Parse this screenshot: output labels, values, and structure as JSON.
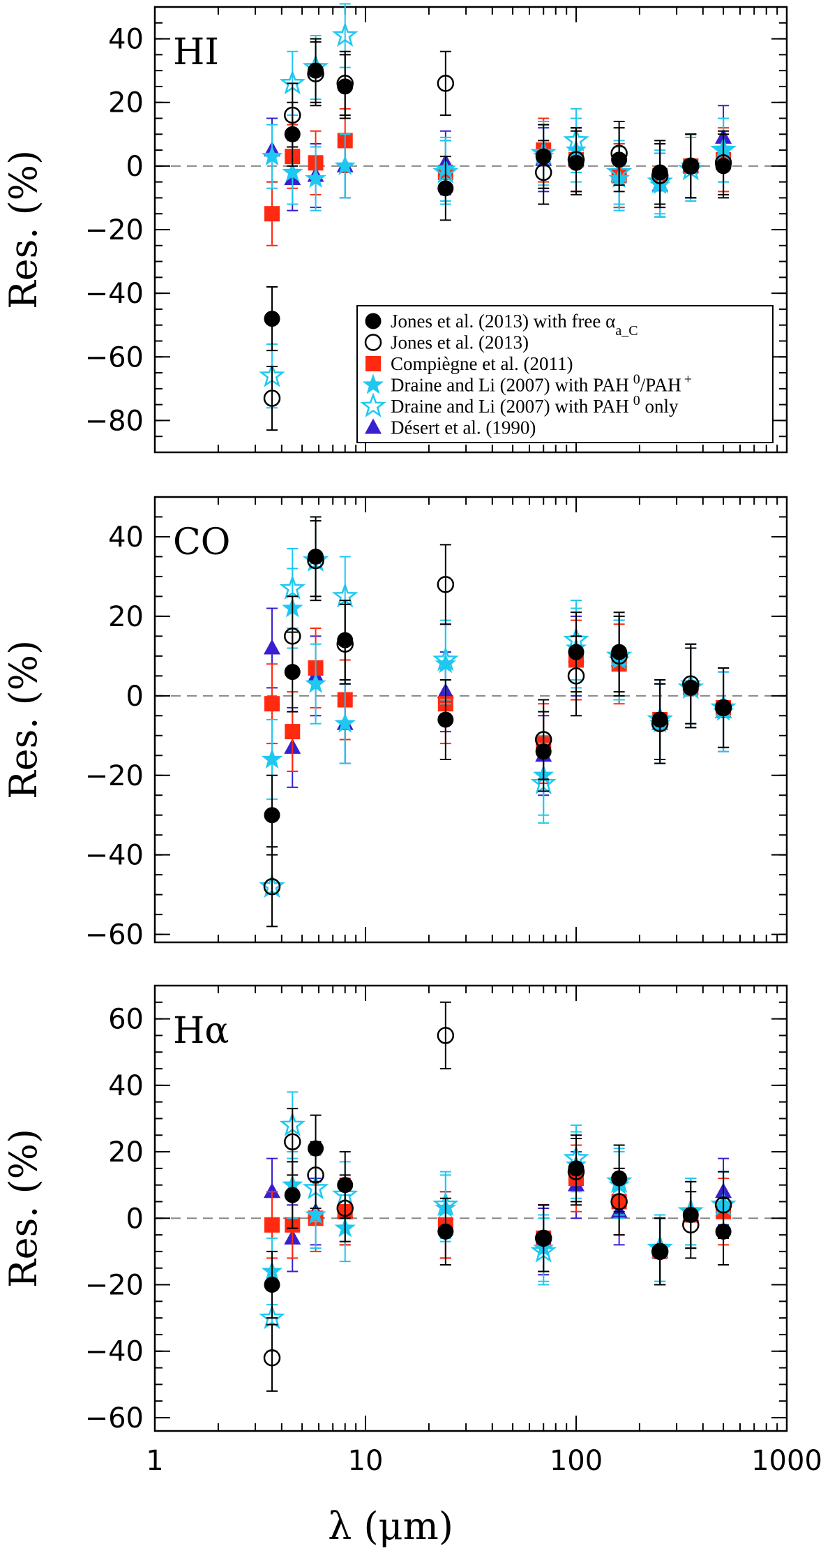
{
  "chart_data": {
    "type": "scatter",
    "xlabel": "λ (μm)",
    "xscale": "log",
    "xlim": [
      1,
      1000
    ],
    "x_tick_labels": [
      "1",
      "10",
      "100",
      "1000"
    ],
    "bands_um": [
      3.6,
      4.5,
      5.8,
      8.0,
      24,
      70,
      100,
      160,
      250,
      350,
      500
    ],
    "colors": {
      "jones_free": "#000000",
      "jones": "#000000",
      "compiegne": "#ff2a10",
      "draine_mix": "#1ec8f0",
      "draine_neutral": "#1ec8f0",
      "desert": "#3a1fd0"
    },
    "legend": [
      {
        "key": "jones_free",
        "label": "Jones et al. (2013) with free α",
        "label_sub": "a_C",
        "marker": "filled-circle"
      },
      {
        "key": "jones",
        "label": "Jones et al. (2013)",
        "marker": "open-circle"
      },
      {
        "key": "compiegne",
        "label": "Compiègne et al. (2011)",
        "marker": "filled-square"
      },
      {
        "key": "draine_mix",
        "label": "Draine and Li (2007) with PAH",
        "label_sup1": "0",
        "label_mid": "/PAH",
        "label_sup2": "+",
        "marker": "filled-star"
      },
      {
        "key": "draine_neutral",
        "label": "Draine and Li (2007) with PAH",
        "label_sup1": "0",
        "label_tail": " only",
        "marker": "open-star"
      },
      {
        "key": "desert",
        "label": "Désert et al. (1990)",
        "marker": "filled-triangle"
      }
    ],
    "panels": [
      {
        "name": "HI",
        "label": "HI",
        "ylabel": "Res. (%)",
        "ylim": [
          -90,
          50
        ],
        "yticks": [
          40,
          20,
          0,
          -20,
          -40,
          -60,
          -80
        ],
        "ytick_labels": [
          "40",
          "20",
          "0",
          "−20",
          "−40",
          "−60",
          "−80"
        ],
        "show_legend": true,
        "series": [
          {
            "key": "desert",
            "values": [
              5,
              -4,
              -3,
              0,
              1,
              2,
              2,
              -3,
              -6,
              0,
              9
            ],
            "err": 10
          },
          {
            "key": "compiegne",
            "values": [
              -15,
              3,
              1,
              8,
              -2,
              5,
              2,
              -3,
              -3,
              0,
              2
            ],
            "err": 10
          },
          {
            "key": "draine_mix",
            "values": [
              3,
              -2,
              -4,
              0,
              -1,
              3,
              5,
              -4,
              -6,
              0,
              5
            ],
            "err": 10
          },
          {
            "key": "draine_neutral",
            "values": [
              -66,
              26,
              31,
              41,
              -2,
              4,
              8,
              -2,
              -5,
              -1,
              5
            ],
            "err": 10
          },
          {
            "key": "jones_free",
            "values": [
              -48,
              10,
              30,
              25,
              -7,
              3,
              1,
              2,
              -2,
              0,
              0
            ],
            "err": 10
          },
          {
            "key": "jones",
            "values": [
              -73,
              16,
              29,
              26,
              26,
              -2,
              2,
              4,
              -3,
              0,
              1
            ],
            "err": 10
          }
        ]
      },
      {
        "name": "CO",
        "label": "CO",
        "ylabel": "Res. (%)",
        "ylim": [
          -62,
          50
        ],
        "yticks": [
          40,
          20,
          0,
          -20,
          -40,
          -60
        ],
        "ytick_labels": [
          "40",
          "20",
          "0",
          "−20",
          "−40",
          "−60"
        ],
        "show_legend": false,
        "series": [
          {
            "key": "desert",
            "values": [
              12,
              -13,
              5,
              -7,
              1,
              -15,
              10,
              9,
              -7,
              3,
              -4
            ],
            "err": 10
          },
          {
            "key": "compiegne",
            "values": [
              -2,
              -9,
              7,
              -1,
              -2,
              -12,
              9,
              8,
              -6,
              2,
              -3
            ],
            "err": 10
          },
          {
            "key": "draine_mix",
            "values": [
              -16,
              22,
              3,
              -7,
              8,
              -20,
              12,
              9,
              -7,
              3,
              -4
            ],
            "err": 10
          },
          {
            "key": "draine_neutral",
            "values": [
              -48,
              27,
              34,
              25,
              9,
              -22,
              14,
              10,
              -6,
              2,
              -3
            ],
            "err": 10
          },
          {
            "key": "jones_free",
            "values": [
              -30,
              6,
              35,
              14,
              -6,
              -14,
              11,
              11,
              -6,
              2,
              -3
            ],
            "err": 10
          },
          {
            "key": "jones",
            "values": [
              -48,
              15,
              34,
              13,
              28,
              -11,
              5,
              10,
              -7,
              3,
              -3
            ],
            "err": 10
          }
        ]
      },
      {
        "name": "Halpha",
        "label": "Hα",
        "ylabel": "Res. (%)",
        "ylim": [
          -64,
          70
        ],
        "yticks": [
          60,
          40,
          20,
          0,
          -20,
          -40,
          -60
        ],
        "ytick_labels": [
          "60",
          "40",
          "20",
          "0",
          "−20",
          "−40",
          "−60"
        ],
        "show_legend": false,
        "series": [
          {
            "key": "desert",
            "values": [
              8,
              -6,
              2,
              2,
              -2,
              -7,
              10,
              2,
              -10,
              1,
              8
            ],
            "err": 10
          },
          {
            "key": "compiegne",
            "values": [
              -2,
              -2,
              0,
              2,
              -2,
              -6,
              12,
              5,
              -10,
              1,
              2
            ],
            "err": 10
          },
          {
            "key": "draine_mix",
            "values": [
              -16,
              10,
              1,
              -3,
              3,
              -9,
              16,
              10,
              -9,
              2,
              4
            ],
            "err": 10
          },
          {
            "key": "draine_neutral",
            "values": [
              -30,
              28,
              9,
              7,
              4,
              -10,
              18,
              11,
              -9,
              2,
              4
            ],
            "err": 10
          },
          {
            "key": "jones_free",
            "values": [
              -20,
              7,
              21,
              10,
              -4,
              -6,
              15,
              12,
              -10,
              1,
              -4
            ],
            "err": 10
          },
          {
            "key": "jones",
            "values": [
              -42,
              23,
              13,
              3,
              55,
              -6,
              14,
              5,
              -10,
              -2,
              4
            ],
            "err": 10
          }
        ]
      }
    ]
  }
}
